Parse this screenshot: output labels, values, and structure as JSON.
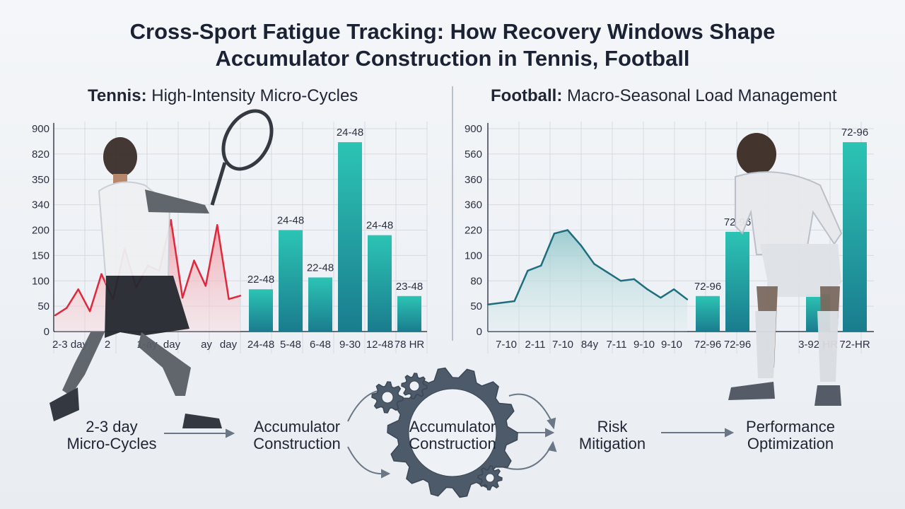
{
  "title": {
    "line1": "Cross-Sport Fatigue Tracking: How Recovery Windows Shape",
    "line2": "Accumulator Construction in Tennis, Football"
  },
  "tennis": {
    "title_bold": "Tennis:",
    "title_rest": " High-Intensity Micro-Cycles"
  },
  "football": {
    "title_bold": "Football:",
    "title_rest": " Macro-Seasonal Load Management"
  },
  "chart_data": [
    {
      "type": "bar",
      "panel": "tennis",
      "yticks": [
        "0",
        "50",
        "100",
        "150",
        "200",
        "340",
        "350",
        "820",
        "900"
      ],
      "line_series": {
        "color": "#e0283c",
        "values": [
          48,
          70,
          125,
          60,
          170,
          95,
          245,
          130,
          195,
          180,
          330,
          100,
          210,
          135,
          315,
          96,
          106
        ]
      },
      "line_xlabels": [
        "2-3 day",
        "2",
        "1-ay",
        "day",
        "ay",
        "day"
      ],
      "categories": [
        "24-48",
        "5-48",
        "6-48",
        "9-30",
        "12-48",
        "78 HR"
      ],
      "data_labels": [
        "22-48",
        "24-48",
        "22-48",
        "24-48",
        "24-48",
        "23-48"
      ],
      "values": [
        125,
        300,
        160,
        560,
        285,
        105
      ]
    },
    {
      "type": "bar",
      "panel": "football",
      "yticks": [
        "0",
        "50",
        "80",
        "100",
        "220",
        "360",
        "360",
        "560",
        "900"
      ],
      "area_series": {
        "color": "#1f6e7e",
        "values": [
          80,
          85,
          90,
          180,
          195,
          290,
          300,
          255,
          200,
          175,
          150,
          155,
          125,
          100,
          125,
          95
        ]
      },
      "area_xlabels": [
        "7-10",
        "2-11",
        "7-10",
        "84y",
        "7-11",
        "9-10",
        "9-10"
      ],
      "categories": [
        "72-96",
        "72-96",
        "3-92 HR",
        "72-HR"
      ],
      "data_labels": [
        "72-96",
        "72-96",
        "",
        "72-96"
      ],
      "values": [
        105,
        295,
        110,
        560
      ]
    }
  ],
  "flow": {
    "step1_line1": "2-3 day",
    "step1_line2": "Micro-Cycles",
    "step2_line1": "Accumulator",
    "step2_line2": "Construction",
    "gear_line1": "Accumulator",
    "gear_line2": "Construction",
    "step4_line1": "Risk",
    "step4_line2": "Mitigation",
    "step5_line1": "Performance",
    "step5_line2": "Optimization"
  },
  "colors": {
    "bar_top": "#2cc4b4",
    "bar_bottom": "#1a7c8e",
    "tennis_line": "#e0283c",
    "gear": "#4d5a6a",
    "arrow": "#6c7786"
  }
}
